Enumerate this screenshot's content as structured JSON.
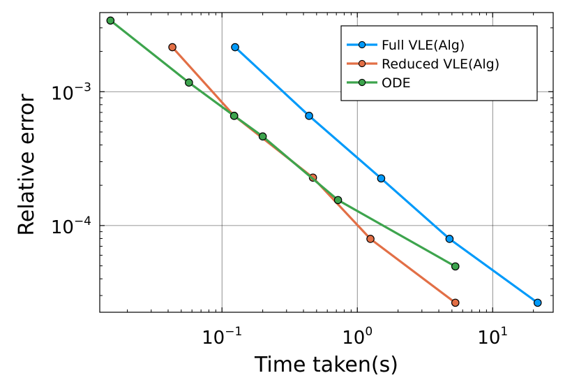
{
  "chart_data": {
    "type": "line",
    "xlabel": "Time taken(s)",
    "ylabel": "Relative error",
    "xscale": "log",
    "yscale": "log",
    "xlim": [
      0.0125,
      28
    ],
    "ylim": [
      2.25e-05,
      0.0039
    ],
    "grid": true,
    "legend_position": "top-right",
    "x_ticks": [
      {
        "value": 0.1,
        "base": "10",
        "exp": "−1"
      },
      {
        "value": 1,
        "label": "10",
        "exp": "0"
      },
      {
        "value": 10,
        "base": "10",
        "exp": "1"
      }
    ],
    "y_ticks": [
      {
        "value": 0.0001,
        "base": "10",
        "exp": "−4"
      },
      {
        "value": 0.001,
        "base": "10",
        "exp": "−3"
      }
    ],
    "series": [
      {
        "name": "Full VLE(Alg)",
        "color": "#009AFA",
        "x": [
          0.125,
          0.44,
          1.5,
          4.8,
          21.5
        ],
        "y": [
          0.00215,
          0.00066,
          0.000225,
          7.95e-05,
          2.65e-05
        ]
      },
      {
        "name": "Reduced VLE(Alg)",
        "color": "#E26F46",
        "x": [
          0.043,
          0.123,
          0.47,
          1.25,
          5.3
        ],
        "y": [
          0.00215,
          0.00066,
          0.000228,
          7.95e-05,
          2.65e-05
        ]
      },
      {
        "name": "ODE",
        "color": "#3DA44D",
        "x": [
          0.015,
          0.057,
          0.123,
          0.2,
          0.72,
          5.3
        ],
        "y": [
          0.0034,
          0.00117,
          0.00066,
          0.000463,
          0.000155,
          4.95e-05
        ]
      }
    ]
  }
}
